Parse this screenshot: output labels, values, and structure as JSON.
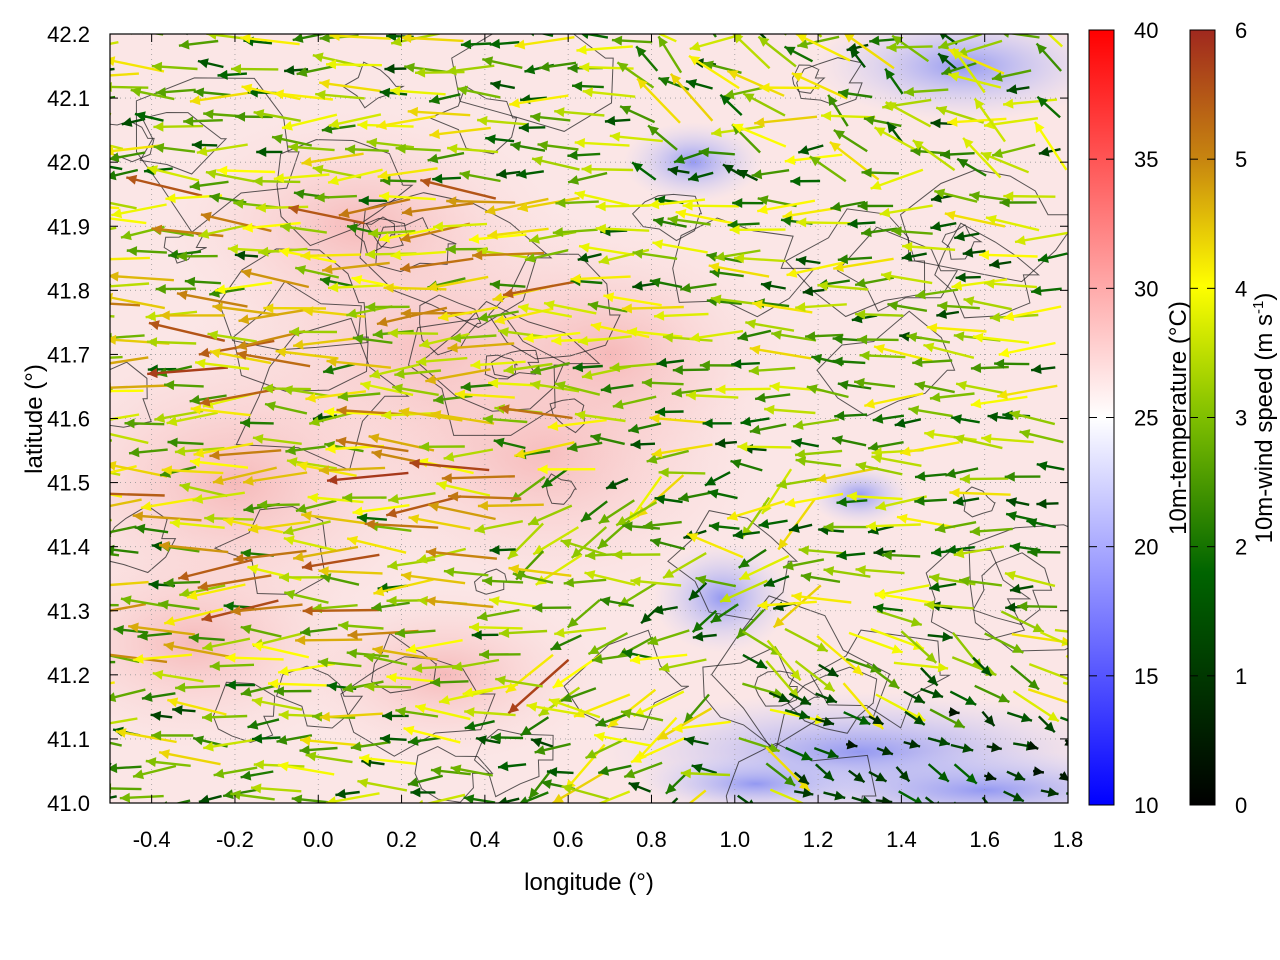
{
  "chart_data": {
    "type": "heatmap",
    "title": "",
    "xlabel": "longitude (°)",
    "ylabel": "latitude (°)",
    "xlim": [
      -0.5,
      1.8
    ],
    "ylim": [
      41.0,
      42.2
    ],
    "x_ticks": [
      "-0.4",
      "-0.2",
      "0.0",
      "0.2",
      "0.4",
      "0.6",
      "0.8",
      "1.0",
      "1.2",
      "1.4",
      "1.6",
      "1.8"
    ],
    "y_ticks": [
      "41.0",
      "41.1",
      "41.2",
      "41.3",
      "41.4",
      "41.5",
      "41.6",
      "41.7",
      "41.8",
      "41.9",
      "42.0",
      "42.1",
      "42.2"
    ],
    "grid": true,
    "colorbars": [
      {
        "label": "10m-temperature (°C)",
        "range": [
          10,
          40
        ],
        "ticks": [
          "10",
          "15",
          "20",
          "25",
          "30",
          "35",
          "40"
        ],
        "colors": [
          "#0000ff",
          "#ffffff",
          "#ff0000"
        ]
      },
      {
        "label_main": "10m-wind speed (m s",
        "label_sup": "-1",
        "label_end": ")",
        "range": [
          0,
          6
        ],
        "ticks": [
          "0",
          "1",
          "2",
          "3",
          "4",
          "5",
          "6"
        ],
        "colors": [
          "#000000",
          "#006400",
          "#7fbf00",
          "#ffff00",
          "#c8870f",
          "#a0281e"
        ]
      }
    ],
    "temperature_regions": [
      {
        "description": "warm band",
        "lon": [
          -0.5,
          0.9
        ],
        "lat": [
          41.2,
          42.1
        ],
        "temp_c": 29
      },
      {
        "description": "cool area northeast",
        "lon": [
          1.4,
          1.8
        ],
        "lat": [
          42.05,
          42.2
        ],
        "temp_c": 18
      },
      {
        "description": "cool area southeast",
        "lon": [
          1.0,
          1.8
        ],
        "lat": [
          41.0,
          41.2
        ],
        "temp_c": 20
      },
      {
        "description": "cool patch",
        "lon": [
          0.9,
          1.1
        ],
        "lat": [
          41.25,
          41.4
        ],
        "temp_c": 19
      }
    ],
    "wind_field": {
      "prevailing_direction": "from east (arrows point westward)",
      "speed_range": [
        0,
        6
      ]
    }
  }
}
